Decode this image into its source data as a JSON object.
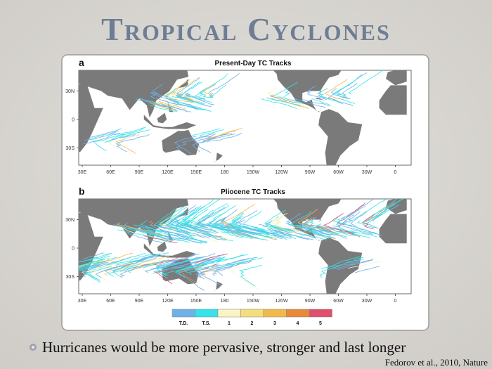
{
  "title": "Tropical Cyclones",
  "figure": {
    "panels": [
      {
        "label": "a",
        "title": "Present-Day TC Tracks",
        "lat_labels": [
          "30N",
          "0",
          "30S"
        ],
        "lon_labels": [
          "30E",
          "60E",
          "90E",
          "120E",
          "150E",
          "180",
          "150W",
          "120W",
          "90W",
          "60W",
          "30W",
          "0"
        ]
      },
      {
        "label": "b",
        "title": "Pliocene TC Tracks",
        "lat_labels": [
          "30N",
          "0",
          "30S"
        ],
        "lon_labels": [
          "30E",
          "60E",
          "90E",
          "120E",
          "150E",
          "180",
          "150W",
          "120W",
          "90W",
          "60W",
          "30W",
          "0"
        ]
      }
    ],
    "legend": [
      "T.D.",
      "T.S.",
      "1",
      "2",
      "3",
      "4",
      "5"
    ]
  },
  "bullet": "Hurricanes would be more pervasive, stronger and last longer",
  "citation": "Fedorov et al., 2010, Nature"
}
